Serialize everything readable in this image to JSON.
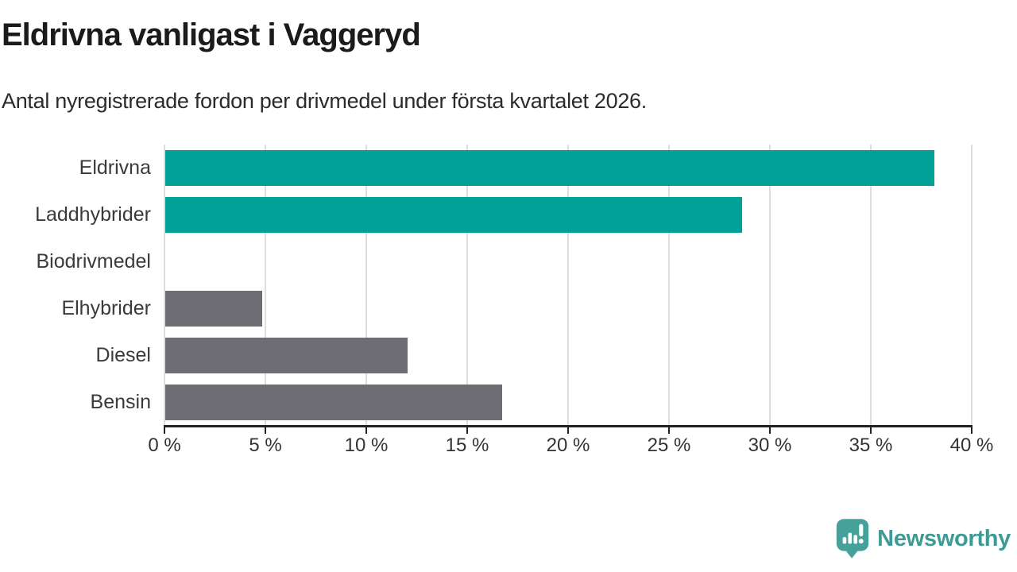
{
  "header": {
    "title": "Eldrivna vanligast i Vaggeryd",
    "subtitle": "Antal nyregistrerade fordon per drivmedel under första kvartalet 2026."
  },
  "chart_data": {
    "type": "bar",
    "orientation": "horizontal",
    "title": "Eldrivna vanligast i Vaggeryd",
    "subtitle": "Antal nyregistrerade fordon per drivmedel under första kvartalet 2026.",
    "categories": [
      "Eldrivna",
      "Laddhybrider",
      "Biodrivmedel",
      "Elhybrider",
      "Diesel",
      "Bensin"
    ],
    "values": [
      38.1,
      28.6,
      0,
      4.8,
      12,
      16.7
    ],
    "unit": "%",
    "xlim": [
      0,
      40
    ],
    "x_ticks": [
      0,
      5,
      10,
      15,
      20,
      25,
      30,
      35,
      40
    ],
    "x_tick_labels": [
      "0 %",
      "5 %",
      "10 %",
      "15 %",
      "20 %",
      "25 %",
      "30 %",
      "35 %",
      "40 %"
    ],
    "bar_colors": [
      "#00A096",
      "#00A096",
      "#6E6D73",
      "#6E6D73",
      "#6E6D73",
      "#6E6D73"
    ],
    "highlight_color": "#00A096",
    "default_color": "#6E6D73",
    "grid": true,
    "legend": false
  },
  "colors": {
    "grid": "#dddddd",
    "axis": "#222222",
    "brand": "#3D9A94",
    "brand_icon": "#45A29B"
  },
  "footer": {
    "brand": "Newsworthy"
  }
}
